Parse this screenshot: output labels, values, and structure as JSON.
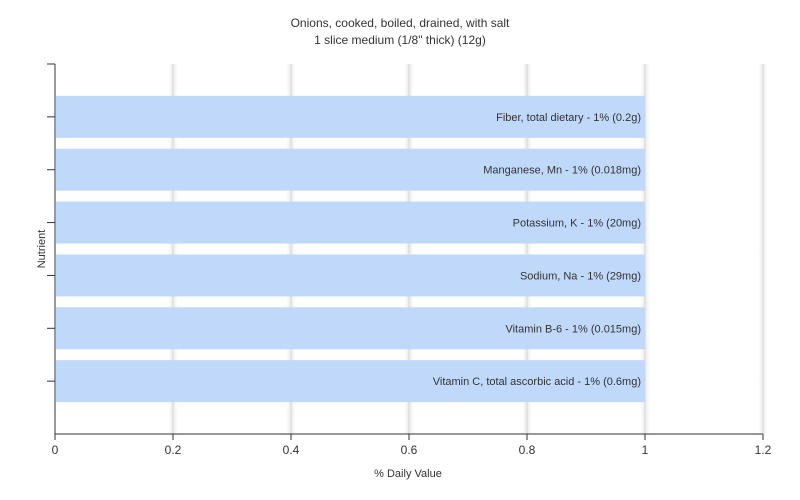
{
  "chart_data": {
    "type": "bar",
    "orientation": "horizontal",
    "title": "Onions, cooked, boiled, drained, with salt",
    "subtitle": "1 slice medium (1/8\" thick) (12g)",
    "xlabel": "% Daily Value",
    "ylabel": "Nutrient",
    "xlim": [
      0,
      1.2
    ],
    "xticks": [
      "0",
      "0.2",
      "0.4",
      "0.6",
      "0.8",
      "1",
      "1.2"
    ],
    "grid": true,
    "bar_color": "#c0d9fa",
    "categories": [
      "Fiber, total dietary",
      "Manganese, Mn",
      "Potassium, K",
      "Sodium, Na",
      "Vitamin B-6",
      "Vitamin C, total ascorbic acid"
    ],
    "values": [
      1,
      1,
      1,
      1,
      1,
      1
    ],
    "bar_labels": [
      "Fiber, total dietary - 1% (0.2g)",
      "Manganese, Mn - 1% (0.018mg)",
      "Potassium, K - 1% (20mg)",
      "Sodium, Na - 1% (29mg)",
      "Vitamin B-6 - 1% (0.015mg)",
      "Vitamin C, total ascorbic acid - 1% (0.6mg)"
    ]
  }
}
